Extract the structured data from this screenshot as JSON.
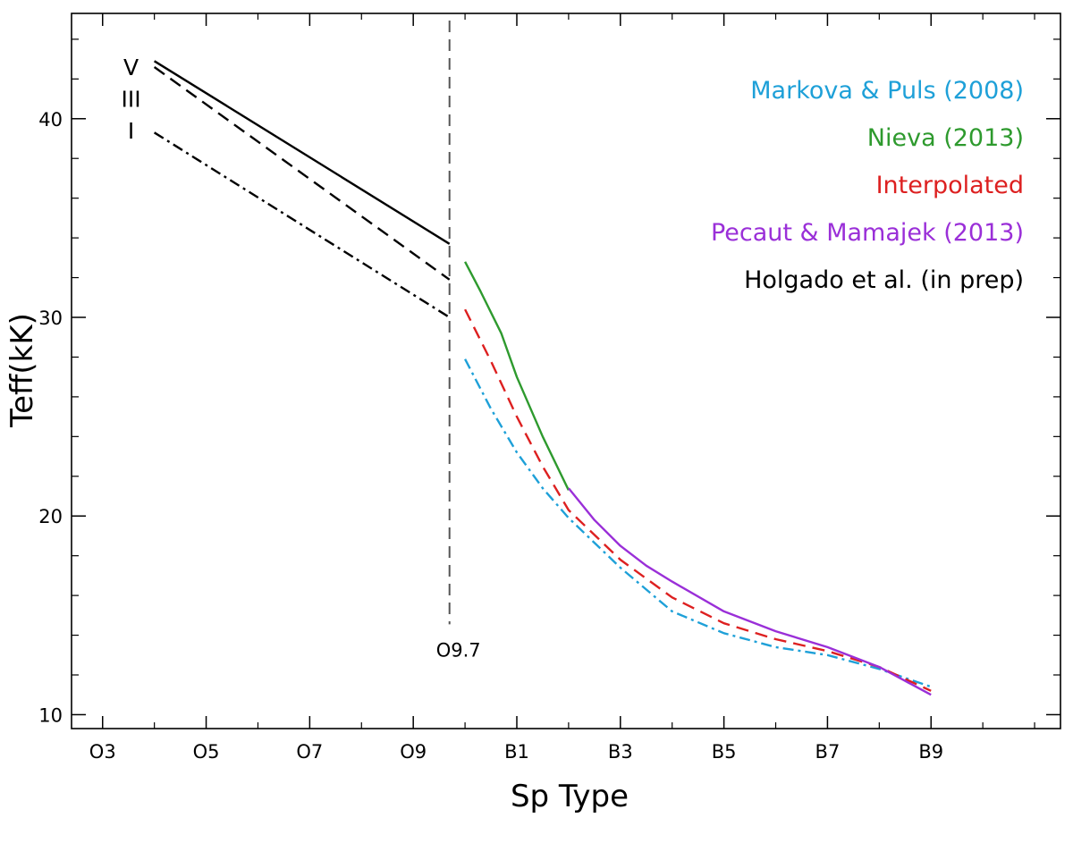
{
  "chart_data": {
    "type": "line",
    "title": "",
    "xlabel": "Sp Type",
    "ylabel": "Teff(kK)",
    "x_range": [
      2.4,
      21.5
    ],
    "ylim": [
      9.3,
      45.3
    ],
    "x_ticks": [
      {
        "x": 3,
        "label": "O3"
      },
      {
        "x": 5,
        "label": "O5"
      },
      {
        "x": 7,
        "label": "O7"
      },
      {
        "x": 9,
        "label": "O9"
      },
      {
        "x": 11,
        "label": "B1"
      },
      {
        "x": 13,
        "label": "B3"
      },
      {
        "x": 15,
        "label": "B5"
      },
      {
        "x": 17,
        "label": "B7"
      },
      {
        "x": 19,
        "label": "B9"
      }
    ],
    "y_ticks": [
      10,
      20,
      30,
      40
    ],
    "y_minor_step": 2,
    "grid": false,
    "vline": {
      "x": 9.7,
      "label": "O9.7",
      "y_from": 15,
      "y_to": 45.3
    },
    "class_labels": [
      {
        "label": "V",
        "x": 3.55,
        "y": 42.6
      },
      {
        "label": "III",
        "x": 3.55,
        "y": 41.0
      },
      {
        "label": "I",
        "x": 3.55,
        "y": 39.4
      }
    ],
    "legend_position": "top-right",
    "series": [
      {
        "name": "Holgado et al. (in prep)",
        "color": "#000000",
        "dash": "solid",
        "x": [
          4,
          9.7
        ],
        "y": [
          42.9,
          33.7
        ]
      },
      {
        "name": "Holgado et al. (in prep) III",
        "legend": false,
        "color": "#000000",
        "dash": "dashed",
        "x": [
          4,
          9.7
        ],
        "y": [
          42.6,
          31.9
        ]
      },
      {
        "name": "Holgado et al. (in prep) I",
        "legend": false,
        "color": "#000000",
        "dash": "dashdot",
        "x": [
          4,
          9.7
        ],
        "y": [
          39.3,
          30.0
        ]
      },
      {
        "name": "Markova & Puls (2008)",
        "color": "#1ea0d8",
        "dash": "dashdot",
        "x": [
          10,
          10.5,
          11,
          11.5,
          12,
          13,
          14,
          15,
          16,
          17,
          18,
          19
        ],
        "y": [
          27.9,
          25.4,
          23.2,
          21.4,
          19.9,
          17.4,
          15.2,
          14.1,
          13.4,
          13.0,
          12.3,
          11.4
        ]
      },
      {
        "name": "Nieva (2013)",
        "color": "#2e9a2e",
        "dash": "solid",
        "x": [
          10,
          10.3,
          10.7,
          11,
          11.5,
          12
        ],
        "y": [
          32.8,
          31.3,
          29.2,
          27.0,
          24.0,
          21.3
        ]
      },
      {
        "name": "Interpolated",
        "color": "#dd2020",
        "dash": "dashed",
        "x": [
          10,
          10.5,
          11,
          11.5,
          12,
          13,
          14,
          15,
          16,
          17,
          18,
          19
        ],
        "y": [
          30.4,
          27.8,
          25.0,
          22.5,
          20.3,
          17.8,
          15.9,
          14.6,
          13.8,
          13.2,
          12.4,
          11.2
        ]
      },
      {
        "name": "Pecaut & Mamajek (2013)",
        "color": "#9a2fd8",
        "dash": "solid",
        "x": [
          12,
          12.5,
          13,
          13.5,
          14,
          15,
          16,
          17,
          18,
          19
        ],
        "y": [
          21.4,
          19.8,
          18.5,
          17.5,
          16.7,
          15.2,
          14.2,
          13.4,
          12.4,
          11.0
        ]
      }
    ]
  }
}
